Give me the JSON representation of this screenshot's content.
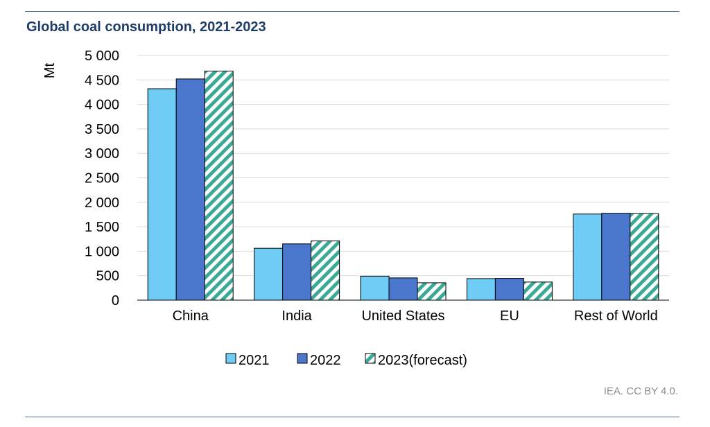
{
  "title": "Global coal consumption, 2021-2023",
  "credit": "IEA. CC BY 4.0.",
  "chart_data": {
    "type": "bar",
    "title": "Global coal consumption, 2021-2023",
    "xlabel": "",
    "ylabel": "Mt",
    "ylim": [
      0,
      5000
    ],
    "yticks": [
      0,
      500,
      1000,
      1500,
      2000,
      2500,
      3000,
      3500,
      4000,
      4500,
      5000
    ],
    "ytick_labels": [
      "0",
      "500",
      "1 000",
      "1 500",
      "2 000",
      "2 500",
      "3 000",
      "3 500",
      "4 000",
      "4 500",
      "5 000"
    ],
    "grid": true,
    "legend": "bottom",
    "categories": [
      "China",
      "India",
      "United States",
      "EU",
      "Rest of World"
    ],
    "series": [
      {
        "name": "2021",
        "color": "#6fcdf5",
        "pattern": "solid",
        "values": [
          4320,
          1060,
          490,
          440,
          1760
        ]
      },
      {
        "name": "2022",
        "color": "#4a76cc",
        "pattern": "solid",
        "values": [
          4520,
          1150,
          455,
          445,
          1775
        ]
      },
      {
        "name": "2023(forecast)",
        "color": "#3aaa96",
        "pattern": "diagonal-stripes",
        "values": [
          4680,
          1210,
          355,
          370,
          1770
        ]
      }
    ]
  }
}
